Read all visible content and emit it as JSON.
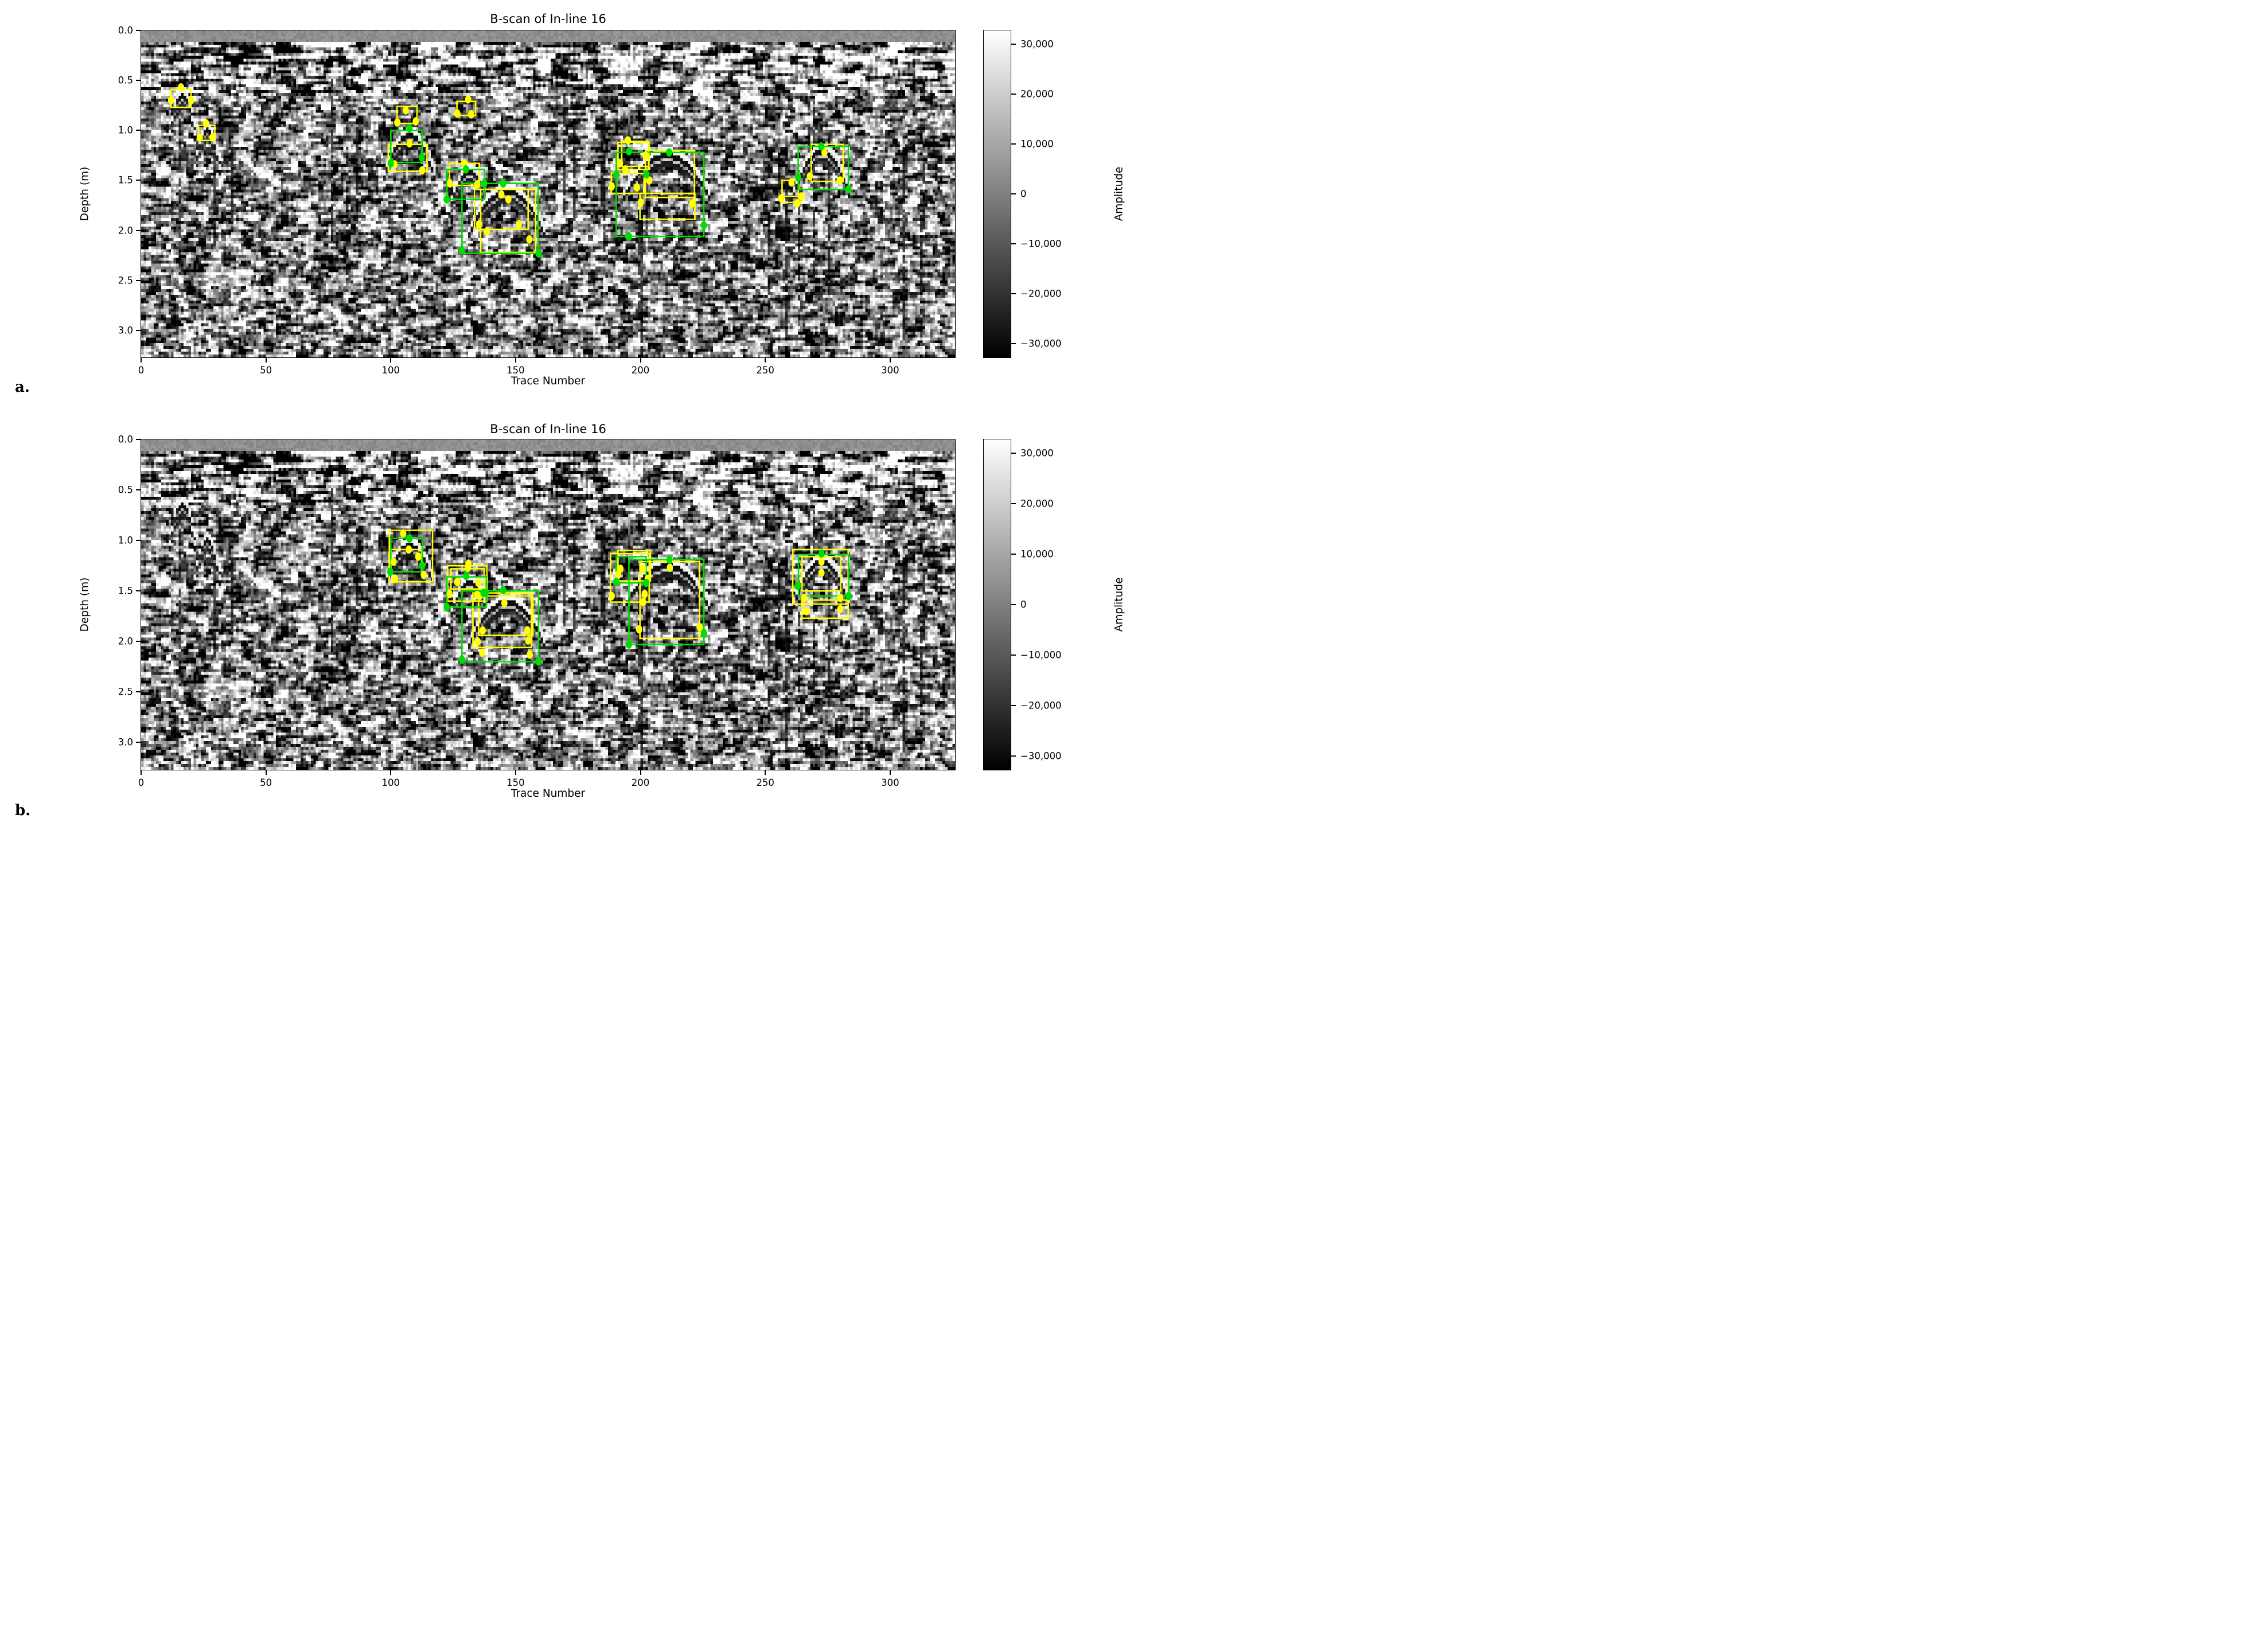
{
  "figure": {
    "description": "Two stacked GPR B-scan radargrams with detection bounding boxes and keypoints",
    "panel_letters": [
      "a.",
      "b."
    ]
  },
  "annotation_colors": {
    "yellow": "#ffff00",
    "green": "#00dd00"
  },
  "chart_data": [
    {
      "type": "heatmap",
      "panel_label": "a.",
      "title": "B-scan of In-line 16",
      "xlabel": "Trace Number",
      "ylabel": "Depth (m)",
      "x_ticks": [
        0,
        50,
        100,
        150,
        200,
        250,
        300
      ],
      "y_tick_labels": [
        "0.0",
        "0.5",
        "1.0",
        "1.5",
        "2.0",
        "2.5",
        "3.0"
      ],
      "xlim": [
        0,
        326
      ],
      "depth_range_m": [
        0,
        3.27
      ],
      "grid": false,
      "colorbar": {
        "label": "Amplitude",
        "tick_labels": [
          "30,000",
          "20,000",
          "10,000",
          "0",
          "−10,000",
          "−20,000",
          "−30,000"
        ],
        "tick_values": [
          30000,
          20000,
          10000,
          0,
          -10000,
          -20000,
          -30000
        ],
        "vmin": -32767,
        "vmax": 32767,
        "colormap": "gray"
      },
      "detections": {
        "units": {
          "trace": "index",
          "depth": "m"
        },
        "yellow_boxes": [
          [
            12,
            0.59,
            20,
            0.77
          ],
          [
            23,
            0.95,
            29.5,
            1.1
          ],
          [
            102.5,
            0.76,
            110.5,
            0.93
          ],
          [
            126.5,
            0.71,
            134,
            0.85
          ],
          [
            99,
            1.14,
            114.5,
            1.41
          ],
          [
            123.5,
            1.33,
            135.5,
            1.55
          ],
          [
            133.5,
            1.59,
            155,
            1.99
          ],
          [
            136,
            1.59,
            158,
            2.22
          ],
          [
            192.5,
            1.11,
            203.2,
            1.36
          ],
          [
            191,
            1.12,
            203.4,
            1.39
          ],
          [
            188.3,
            1.43,
            201.5,
            1.63
          ],
          [
            202,
            1.2,
            221.6,
            1.67
          ],
          [
            199.8,
            1.63,
            221.8,
            1.89
          ],
          [
            268.4,
            1.14,
            281.2,
            1.51
          ],
          [
            256.7,
            1.5,
            263.3,
            1.66
          ],
          [
            256.9,
            1.66,
            264.5,
            1.72
          ]
        ],
        "green_boxes": [
          [
            100,
            1.0,
            112.5,
            1.32
          ],
          [
            122.5,
            1.39,
            137.5,
            1.69
          ],
          [
            128.5,
            1.53,
            159,
            2.23
          ],
          [
            190.3,
            1.22,
            225.4,
            2.06
          ],
          [
            263.2,
            1.16,
            283.3,
            1.59
          ]
        ],
        "yellow_points": [
          [
            16,
            0.57
          ],
          [
            12,
            0.7
          ],
          [
            20,
            0.7
          ],
          [
            26,
            0.93
          ],
          [
            23.5,
            1.07
          ],
          [
            28.6,
            1.07
          ],
          [
            106,
            0.8
          ],
          [
            102.6,
            0.92
          ],
          [
            110,
            0.91
          ],
          [
            131,
            0.69
          ],
          [
            126.6,
            0.83
          ],
          [
            132.2,
            0.84
          ],
          [
            107.5,
            1.13
          ],
          [
            101.5,
            1.34
          ],
          [
            112.6,
            1.4
          ],
          [
            129.4,
            1.33
          ],
          [
            123.7,
            1.53
          ],
          [
            134.6,
            1.54
          ],
          [
            144.3,
            1.64
          ],
          [
            147.1,
            1.69
          ],
          [
            135.4,
            1.94
          ],
          [
            151.3,
            1.94
          ],
          [
            138.5,
            2.01
          ],
          [
            155.5,
            2.09
          ],
          [
            195,
            1.1
          ],
          [
            191.8,
            1.33
          ],
          [
            193.9,
            1.39
          ],
          [
            188.5,
            1.56
          ],
          [
            198.6,
            1.57
          ],
          [
            202,
            1.25
          ],
          [
            203.5,
            1.5
          ],
          [
            200.1,
            1.72
          ],
          [
            220.7,
            1.73
          ],
          [
            273.7,
            1.22
          ],
          [
            267.8,
            1.46
          ],
          [
            279.9,
            1.5
          ],
          [
            260.5,
            1.52
          ],
          [
            256.3,
            1.68
          ],
          [
            264.5,
            1.66
          ],
          [
            262.8,
            1.73
          ]
        ],
        "green_points": [
          [
            107.5,
            0.98
          ],
          [
            112.4,
            1.27
          ],
          [
            100,
            1.33
          ],
          [
            130.1,
            1.39
          ],
          [
            137.4,
            1.53
          ],
          [
            122.4,
            1.69
          ],
          [
            145,
            1.53
          ],
          [
            128.5,
            2.2
          ],
          [
            159.2,
            2.23
          ],
          [
            195.4,
            1.21
          ],
          [
            211.5,
            1.22
          ],
          [
            190.3,
            1.44
          ],
          [
            202.4,
            1.44
          ],
          [
            195.4,
            2.06
          ],
          [
            225.4,
            1.95
          ],
          [
            272.4,
            1.16
          ],
          [
            263.2,
            1.47
          ],
          [
            283.3,
            1.59
          ]
        ]
      }
    },
    {
      "type": "heatmap",
      "panel_label": "b.",
      "title": "B-scan of In-line 16",
      "xlabel": "Trace Number",
      "ylabel": "Depth (m)",
      "x_ticks": [
        0,
        50,
        100,
        150,
        200,
        250,
        300
      ],
      "y_tick_labels": [
        "0.0",
        "0.5",
        "1.0",
        "1.5",
        "2.0",
        "2.5",
        "3.0"
      ],
      "xlim": [
        0,
        326
      ],
      "depth_range_m": [
        0,
        3.27
      ],
      "grid": false,
      "colorbar": {
        "label": "Amplitude",
        "tick_labels": [
          "30,000",
          "20,000",
          "10,000",
          "0",
          "−10,000",
          "−20,000",
          "−30,000"
        ],
        "tick_values": [
          30000,
          20000,
          10000,
          0,
          -10000,
          -20000,
          -30000
        ],
        "vmin": -32767,
        "vmax": 32767,
        "colormap": "gray"
      },
      "detections": {
        "units": {
          "trace": "index",
          "depth": "m"
        },
        "yellow_boxes": [
          [
            99.4,
            0.9,
            116.7,
            1.41
          ],
          [
            100.1,
            1.09,
            112.4,
            1.31
          ],
          [
            122.8,
            1.25,
            138.5,
            1.6
          ],
          [
            124.1,
            1.28,
            137.4,
            1.48
          ],
          [
            132.9,
            1.52,
            156.3,
            2.06
          ],
          [
            135.2,
            1.55,
            156.9,
            1.94
          ],
          [
            188,
            1.13,
            203.5,
            1.61
          ],
          [
            191,
            1.1,
            204,
            1.4
          ],
          [
            199.8,
            1.21,
            223.7,
            1.97
          ],
          [
            261,
            1.09,
            283.2,
            1.63
          ],
          [
            264.7,
            1.16,
            280.2,
            1.5
          ],
          [
            264.7,
            1.59,
            283.2,
            1.77
          ]
        ],
        "green_boxes": [
          [
            100,
            0.98,
            112.6,
            1.31
          ],
          [
            122.5,
            1.36,
            138.3,
            1.66
          ],
          [
            128.5,
            1.5,
            159.2,
            2.2
          ],
          [
            190.3,
            1.16,
            202.3,
            1.42
          ],
          [
            195.4,
            1.19,
            225.4,
            2.03
          ],
          [
            263.3,
            1.14,
            283.4,
            1.55
          ]
        ],
        "yellow_points": [
          [
            105,
            0.93
          ],
          [
            107.2,
            1.09
          ],
          [
            111,
            1.16
          ],
          [
            101.1,
            1.21
          ],
          [
            113.2,
            1.34
          ],
          [
            101.7,
            1.38
          ],
          [
            131.1,
            1.23
          ],
          [
            130.9,
            1.27
          ],
          [
            126.6,
            1.41
          ],
          [
            135.1,
            1.42
          ],
          [
            123.6,
            1.53
          ],
          [
            135.7,
            1.55
          ],
          [
            134.6,
            1.54
          ],
          [
            145.5,
            1.62
          ],
          [
            136.8,
            1.89
          ],
          [
            154.7,
            1.89
          ],
          [
            134.8,
            2.0
          ],
          [
            155,
            1.99
          ],
          [
            136.6,
            2.11
          ],
          [
            155.7,
            2.13
          ],
          [
            211.8,
            1.27
          ],
          [
            192,
            1.28
          ],
          [
            191.1,
            1.34
          ],
          [
            201.1,
            1.28
          ],
          [
            202.9,
            1.38
          ],
          [
            201.7,
            1.53
          ],
          [
            201.1,
            1.61
          ],
          [
            188.5,
            1.55
          ],
          [
            199.5,
            1.88
          ],
          [
            223.7,
            1.86
          ],
          [
            272.5,
            1.21
          ],
          [
            272.5,
            1.32
          ],
          [
            265.5,
            1.57
          ],
          [
            280,
            1.57
          ],
          [
            280,
            1.68
          ],
          [
            266.5,
            1.7
          ]
        ],
        "green_points": [
          [
            107.5,
            0.98
          ],
          [
            112.6,
            1.25
          ],
          [
            99.8,
            1.31
          ],
          [
            130.2,
            1.35
          ],
          [
            138,
            1.52
          ],
          [
            122.4,
            1.66
          ],
          [
            145,
            1.49
          ],
          [
            137.1,
            1.52
          ],
          [
            128.5,
            2.18
          ],
          [
            159.2,
            2.2
          ],
          [
            211.6,
            1.19
          ],
          [
            190.3,
            1.41
          ],
          [
            202.3,
            1.42
          ],
          [
            195.4,
            2.03
          ],
          [
            225.4,
            1.92
          ],
          [
            272.5,
            1.13
          ],
          [
            263,
            1.45
          ],
          [
            283.4,
            1.55
          ]
        ]
      }
    }
  ]
}
